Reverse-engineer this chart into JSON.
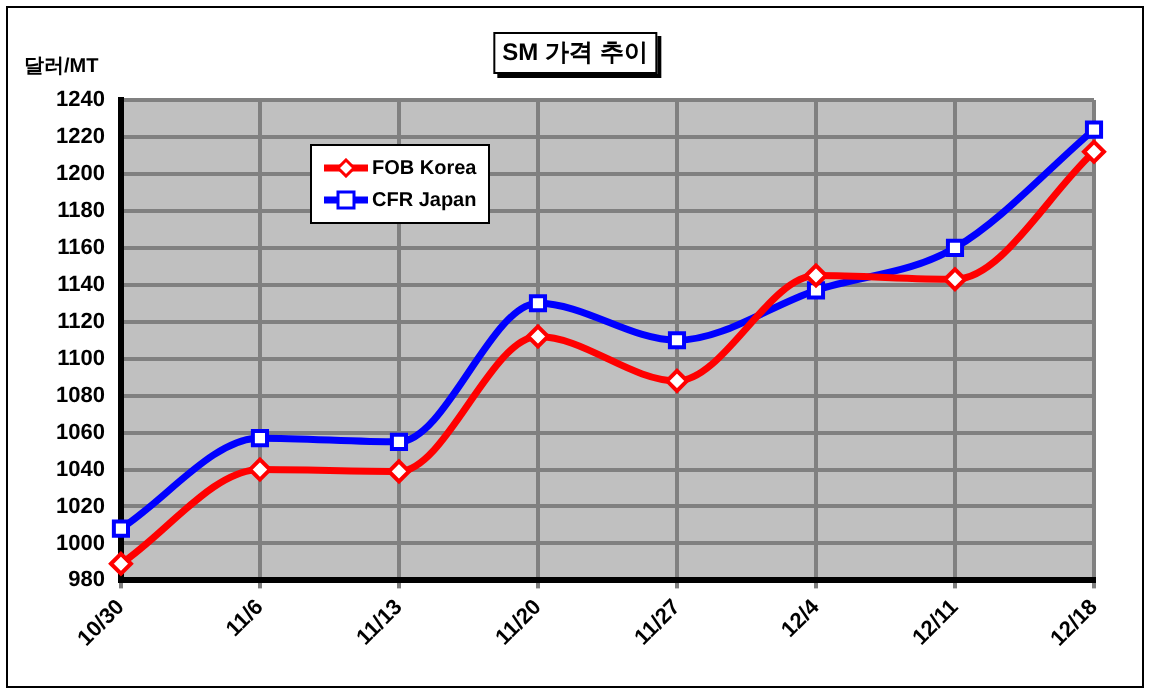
{
  "chart_data": {
    "type": "line",
    "title": "SM 가격 추이",
    "ylabel": "달러/MT",
    "categories": [
      "10/30",
      "11/6",
      "11/13",
      "11/20",
      "11/27",
      "12/4",
      "12/11",
      "12/18"
    ],
    "series": [
      {
        "name": "FOB Korea",
        "color": "#ff0000",
        "marker": "diamond",
        "values": [
          989,
          1040,
          1039,
          1112,
          1088,
          1145,
          1143,
          1212
        ]
      },
      {
        "name": "CFR Japan",
        "color": "#0000ff",
        "marker": "square",
        "values": [
          1008,
          1057,
          1055,
          1130,
          1110,
          1137,
          1160,
          1224
        ]
      }
    ],
    "ylim": [
      980,
      1240
    ],
    "yticks": [
      980,
      1000,
      1020,
      1040,
      1060,
      1080,
      1100,
      1120,
      1140,
      1160,
      1180,
      1200,
      1220,
      1240
    ],
    "grid": true,
    "legend": "top left"
  }
}
